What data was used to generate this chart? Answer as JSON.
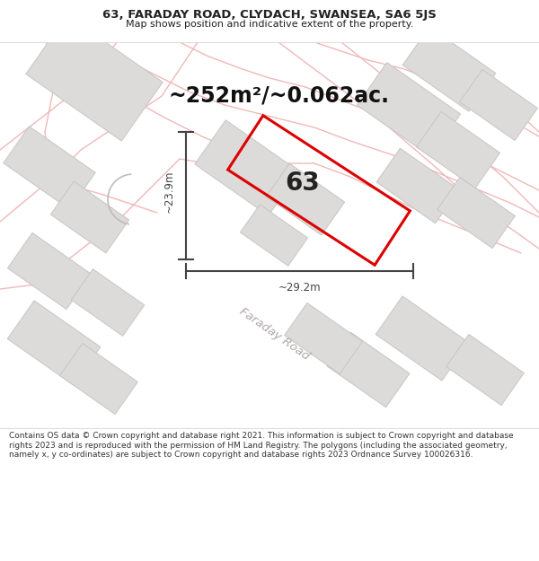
{
  "title_line1": "63, FARADAY ROAD, CLYDACH, SWANSEA, SA6 5JS",
  "title_line2": "Map shows position and indicative extent of the property.",
  "area_text": "~252m²/~0.062ac.",
  "property_number": "63",
  "dim_height": "~23.9m",
  "dim_width": "~29.2m",
  "road_label": "Faraday Road",
  "footer_text": "Contains OS data © Crown copyright and database right 2021. This information is subject to Crown copyright and database rights 2023 and is reproduced with the permission of HM Land Registry. The polygons (including the associated geometry, namely x, y co-ordinates) are subject to Crown copyright and database rights 2023 Ordnance Survey 100026316.",
  "bg_color": "#ffffff",
  "map_bg_color": "#f8f6f6",
  "building_fill": "#dddada",
  "building_edge": "#c8c5c5",
  "property_outline_color": "#dd0000",
  "road_line_color": "#f0b8b8",
  "measurement_color": "#444444",
  "title_color": "#222222",
  "footer_color": "#333333",
  "road_label_color": "#b0a8a8",
  "title_fontsize": 9.5,
  "subtitle_fontsize": 8.0,
  "area_fontsize": 17,
  "number_fontsize": 20,
  "dim_fontsize": 8.5,
  "road_fontsize": 9.5,
  "footer_fontsize": 6.5
}
